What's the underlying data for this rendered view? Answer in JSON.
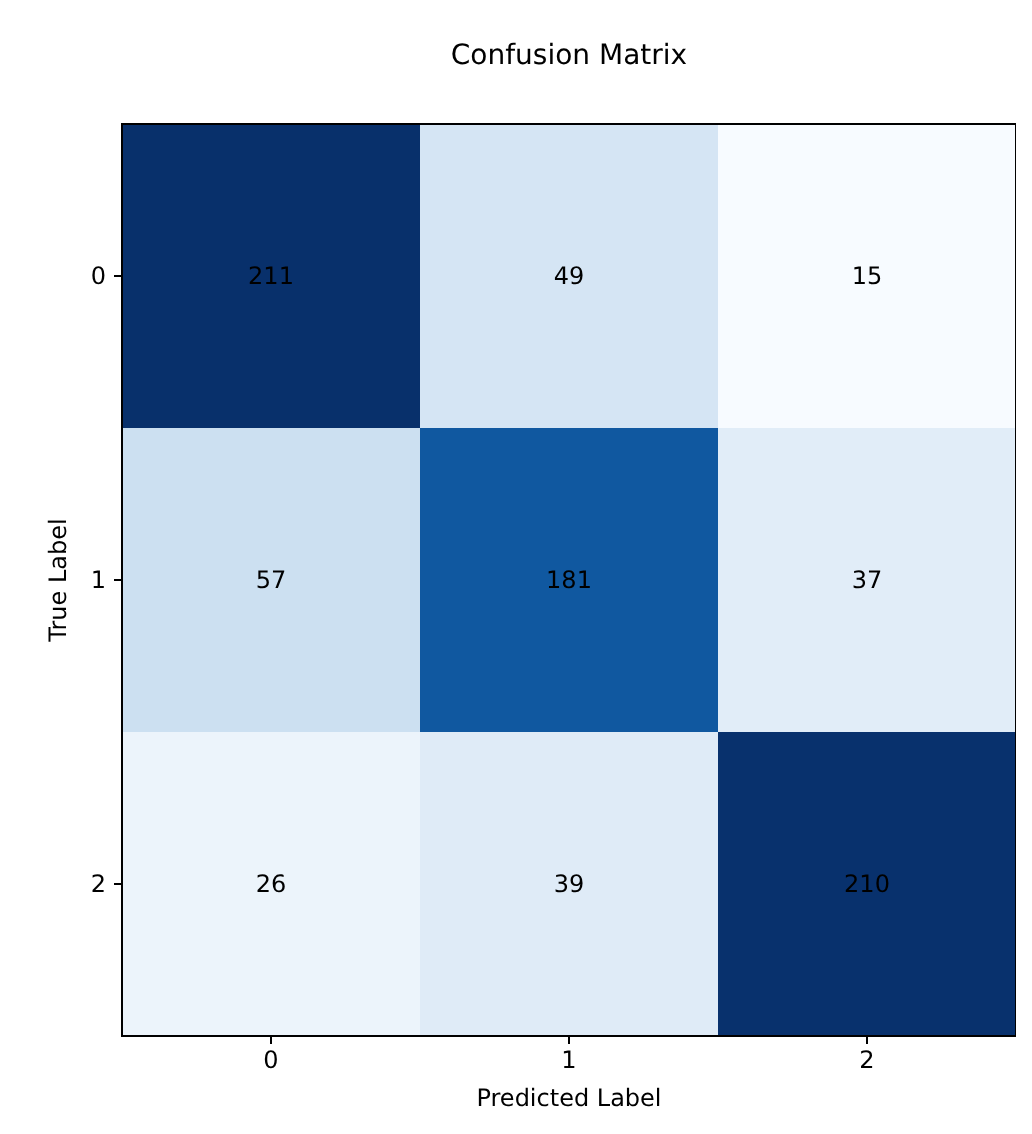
{
  "chart_data": {
    "type": "heatmap",
    "title": "Confusion Matrix",
    "xlabel": "Predicted Label",
    "ylabel": "True Label",
    "categories": [
      "0",
      "1",
      "2"
    ],
    "y_categories": [
      "0",
      "1",
      "2"
    ],
    "cells": [
      [
        211,
        49,
        15
      ],
      [
        57,
        181,
        37
      ],
      [
        26,
        39,
        210
      ]
    ],
    "data_labels": true
  }
}
